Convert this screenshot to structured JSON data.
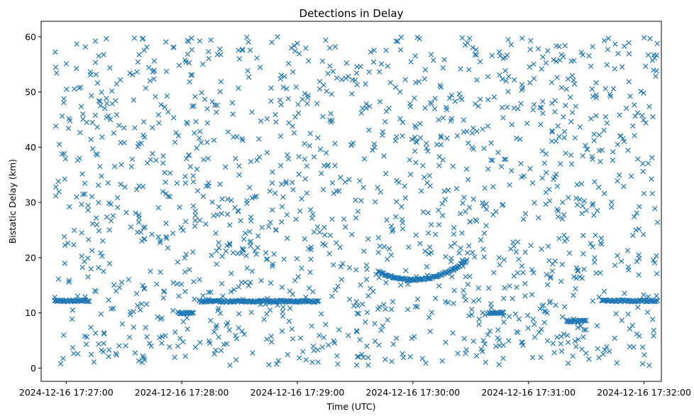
{
  "chart_data": {
    "type": "scatter",
    "title": "Detections in Delay",
    "xlabel": "Time (UTC)",
    "ylabel": "Bistatic Delay (km)",
    "marker": "x",
    "color": "#1f77b4",
    "grid": false,
    "legend": "none",
    "x_axis_type": "datetime",
    "xlim": [
      "2024-12-16 17:26:47",
      "2024-12-16 17:32:09"
    ],
    "ylim": [
      -2.4,
      62.8
    ],
    "x_ticks": [
      "2024-12-16 17:27:00",
      "2024-12-16 17:28:00",
      "2024-12-16 17:29:00",
      "2024-12-16 17:30:00",
      "2024-12-16 17:31:00",
      "2024-12-16 17:32:00"
    ],
    "y_ticks": [
      0,
      10,
      20,
      30,
      40,
      50,
      60
    ],
    "tracks": [
      {
        "from": "2024-12-16 17:26:54",
        "to": "2024-12-16 17:27:12",
        "shape": "flat",
        "y": 12.2
      },
      {
        "from": "2024-12-16 17:28:09",
        "to": "2024-12-16 17:29:11",
        "shape": "flat",
        "y": 12.1
      },
      {
        "from": "2024-12-16 17:29:42",
        "to": "2024-12-16 17:30:28",
        "shape": "dip",
        "y_start": 17.5,
        "y_min": 16.0,
        "y_end": 19.5
      },
      {
        "from": "2024-12-16 17:27:58",
        "to": "2024-12-16 17:28:06",
        "shape": "flat",
        "y": 10.0
      },
      {
        "from": "2024-12-16 17:30:39",
        "to": "2024-12-16 17:30:47",
        "shape": "flat",
        "y": 10.0
      },
      {
        "from": "2024-12-16 17:31:20",
        "to": "2024-12-16 17:31:30",
        "shape": "flat",
        "y": 8.5
      },
      {
        "from": "2024-12-16 17:31:38",
        "to": "2024-12-16 17:32:07",
        "shape": "flat",
        "y": 12.2
      }
    ],
    "clutter": {
      "from": "2024-12-16 17:26:54",
      "to": "2024-12-16 17:32:07",
      "y_range": [
        0.5,
        60
      ],
      "count": 1500
    }
  }
}
